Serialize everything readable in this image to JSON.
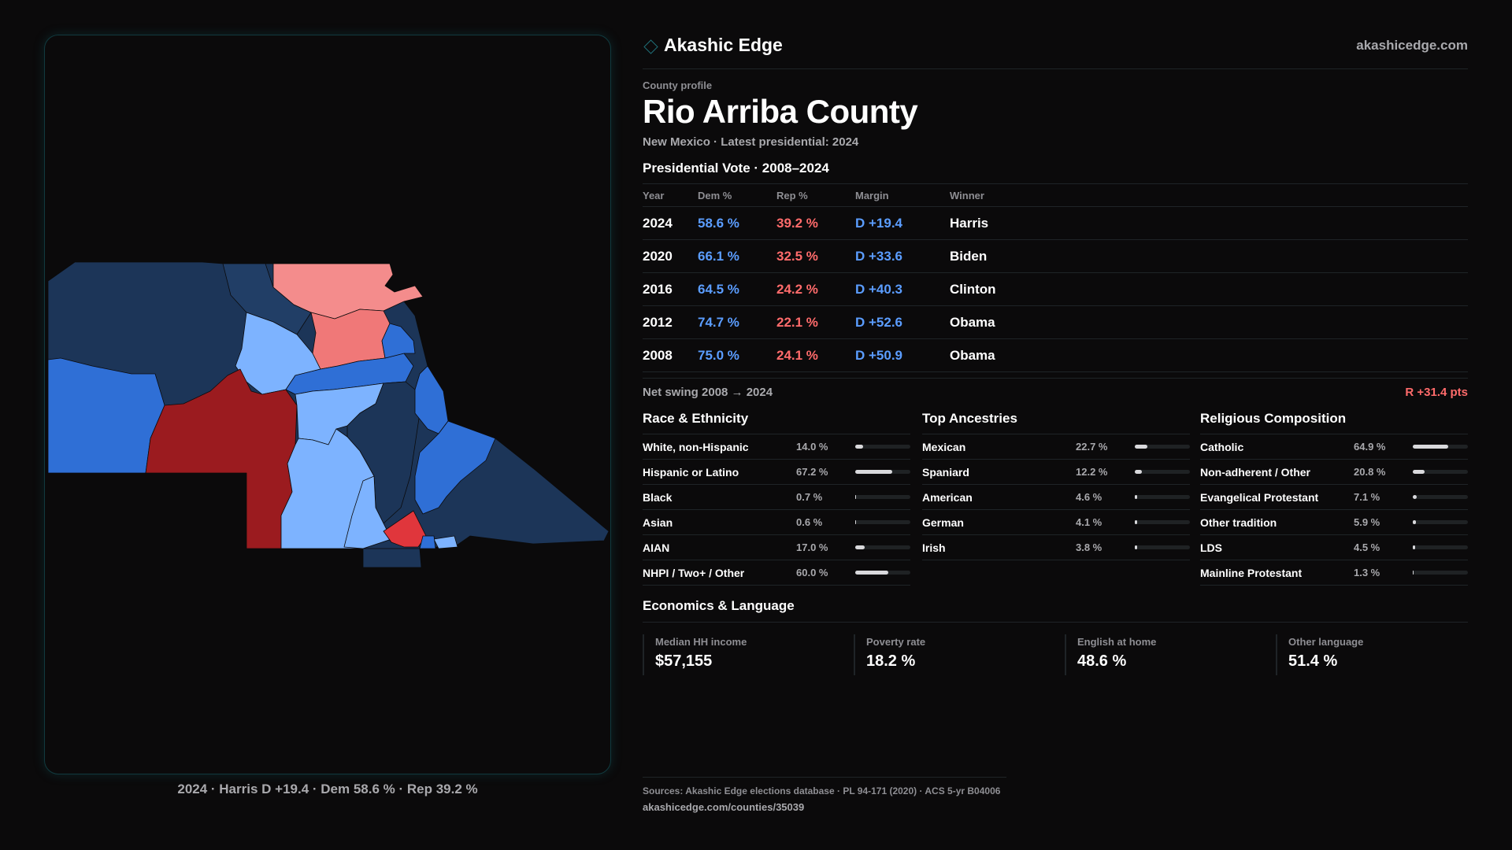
{
  "brand": {
    "name": "Akashic Edge",
    "site": "akashicedge.com"
  },
  "profile": {
    "eyebrow": "County profile",
    "title": "Rio Arriba County",
    "subtitle": "New Mexico · Latest presidential: 2024"
  },
  "vote": {
    "section_title": "Presidential Vote · 2008–2024",
    "headers": {
      "year": "Year",
      "dem": "Dem %",
      "rep": "Rep %",
      "margin": "Margin",
      "winner": "Winner"
    },
    "rows": [
      {
        "year": "2024",
        "dem": "58.6 %",
        "rep": "39.2 %",
        "margin": "D +19.4",
        "winner": "Harris"
      },
      {
        "year": "2020",
        "dem": "66.1 %",
        "rep": "32.5 %",
        "margin": "D +33.6",
        "winner": "Biden"
      },
      {
        "year": "2016",
        "dem": "64.5 %",
        "rep": "24.2 %",
        "margin": "D +40.3",
        "winner": "Clinton"
      },
      {
        "year": "2012",
        "dem": "74.7 %",
        "rep": "22.1 %",
        "margin": "D +52.6",
        "winner": "Obama"
      },
      {
        "year": "2008",
        "dem": "75.0 %",
        "rep": "24.1 %",
        "margin": "D +50.9",
        "winner": "Obama"
      }
    ],
    "swing_label": "Net swing 2008 → 2024",
    "swing_value": "R +31.4 pts"
  },
  "race": {
    "title": "Race & Ethnicity",
    "rows": [
      {
        "label": "White, non-Hispanic",
        "value": "14.0 %",
        "pct": 14.0
      },
      {
        "label": "Hispanic or Latino",
        "value": "67.2 %",
        "pct": 67.2
      },
      {
        "label": "Black",
        "value": "0.7 %",
        "pct": 0.7
      },
      {
        "label": "Asian",
        "value": "0.6 %",
        "pct": 0.6
      },
      {
        "label": "AIAN",
        "value": "17.0 %",
        "pct": 17.0
      },
      {
        "label": "NHPI / Two+ / Other",
        "value": "60.0 %",
        "pct": 60.0
      }
    ]
  },
  "ancestries": {
    "title": "Top Ancestries",
    "rows": [
      {
        "label": "Mexican",
        "value": "22.7 %",
        "pct": 22.7
      },
      {
        "label": "Spaniard",
        "value": "12.2 %",
        "pct": 12.2
      },
      {
        "label": "American",
        "value": "4.6 %",
        "pct": 4.6
      },
      {
        "label": "German",
        "value": "4.1 %",
        "pct": 4.1
      },
      {
        "label": "Irish",
        "value": "3.8 %",
        "pct": 3.8
      }
    ]
  },
  "religion": {
    "title": "Religious Composition",
    "rows": [
      {
        "label": "Catholic",
        "value": "64.9 %",
        "pct": 64.9
      },
      {
        "label": "Non-adherent / Other",
        "value": "20.8 %",
        "pct": 20.8
      },
      {
        "label": "Evangelical Protestant",
        "value": "7.1 %",
        "pct": 7.1
      },
      {
        "label": "Other tradition",
        "value": "5.9 %",
        "pct": 5.9
      },
      {
        "label": "LDS",
        "value": "4.5 %",
        "pct": 4.5
      },
      {
        "label": "Mainline Protestant",
        "value": "1.3 %",
        "pct": 1.3
      }
    ]
  },
  "economics": {
    "title": "Economics & Language",
    "cards": [
      {
        "label": "Median HH income",
        "value": "$57,155"
      },
      {
        "label": "Poverty rate",
        "value": "18.2 %"
      },
      {
        "label": "English at home",
        "value": "48.6 %"
      },
      {
        "label": "Other language",
        "value": "51.4 %"
      }
    ]
  },
  "map": {
    "caption": "2024 · Harris D +19.4 · Dem 58.6 % · Rep 39.2 %",
    "colors": {
      "safe_dem": "#1c3558",
      "likely_dem": "#2f6fd6",
      "lean_dem": "#7db3ff",
      "lean_rep": "#f07878",
      "likely_rep": "#f48c8c",
      "safe_rep": "#9b1b1f",
      "tilt_rep": "#e0363c"
    }
  },
  "footer": {
    "sources": "Sources: Akashic Edge elections database · PL 94-171 (2020) · ACS 5-yr B04006",
    "url": "akashicedge.com/counties/35039"
  }
}
